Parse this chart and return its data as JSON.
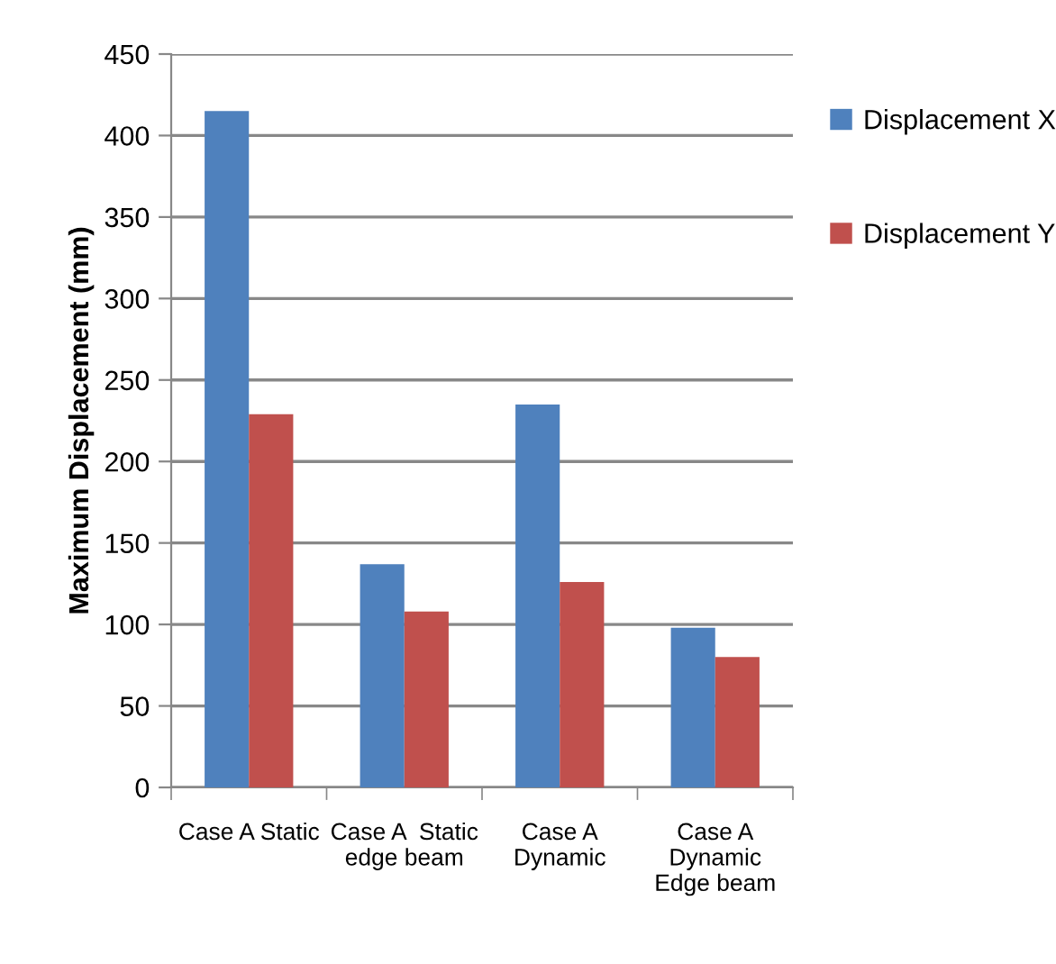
{
  "chart_data": {
    "type": "bar",
    "ylabel": "Maximum Displacement (mm)",
    "categories": [
      "Case A Static",
      "Case A  Static\nedge beam",
      "Case A\nDynamic",
      "Case A\nDynamic\nEdge beam"
    ],
    "series": [
      {
        "name": "Displacement X",
        "color": "#4f81bd",
        "values": [
          415,
          137,
          235,
          98
        ]
      },
      {
        "name": "Displacement Y",
        "color": "#c0504d",
        "values": [
          229,
          108,
          126,
          80
        ]
      }
    ],
    "ylim": [
      0,
      450
    ],
    "yticks": [
      0,
      50,
      100,
      150,
      200,
      250,
      300,
      350,
      400,
      450
    ],
    "grid": "y",
    "legend": "right"
  }
}
